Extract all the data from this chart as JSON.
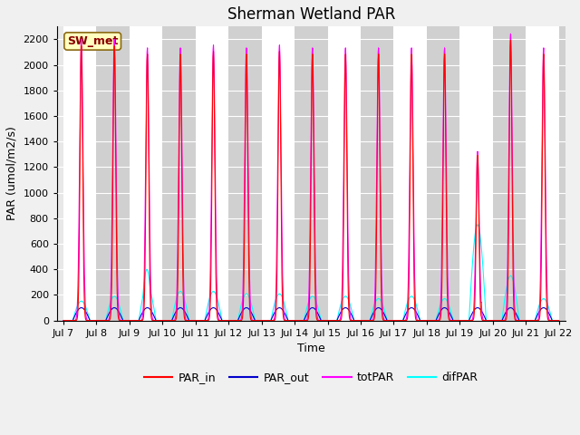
{
  "title": "Sherman Wetland PAR",
  "ylabel": "PAR (umol/m2/s)",
  "xlabel": "Time",
  "site_label": "SW_met",
  "ylim": [
    0,
    2300
  ],
  "yticks": [
    0,
    200,
    400,
    600,
    800,
    1000,
    1200,
    1400,
    1600,
    1800,
    2000,
    2200
  ],
  "x_tick_labels": [
    "Jul 7",
    "Jul 8",
    "Jul 9",
    "Jul 10",
    "Jul 11",
    "Jul 12",
    "Jul 13",
    "Jul 14",
    "Jul 15",
    "Jul 16",
    "Jul 17",
    "Jul 18",
    "Jul 19",
    "Jul 20",
    "Jul 21",
    "Jul 22"
  ],
  "colors": {
    "PAR_in": "#ff0000",
    "PAR_out": "#0000cc",
    "totPAR": "#ff00ff",
    "difPAR": "#00ffff"
  },
  "bg_color": "#f0f0f0",
  "plot_bg": "#e8e8e8",
  "stripe_color": "#d0d0d0",
  "legend_bg": "#ffffc0",
  "legend_border": "#8b0000",
  "grid_color": "#ffffff",
  "title_fontsize": 12,
  "label_fontsize": 9,
  "tick_fontsize": 8,
  "legend_fontsize": 9
}
